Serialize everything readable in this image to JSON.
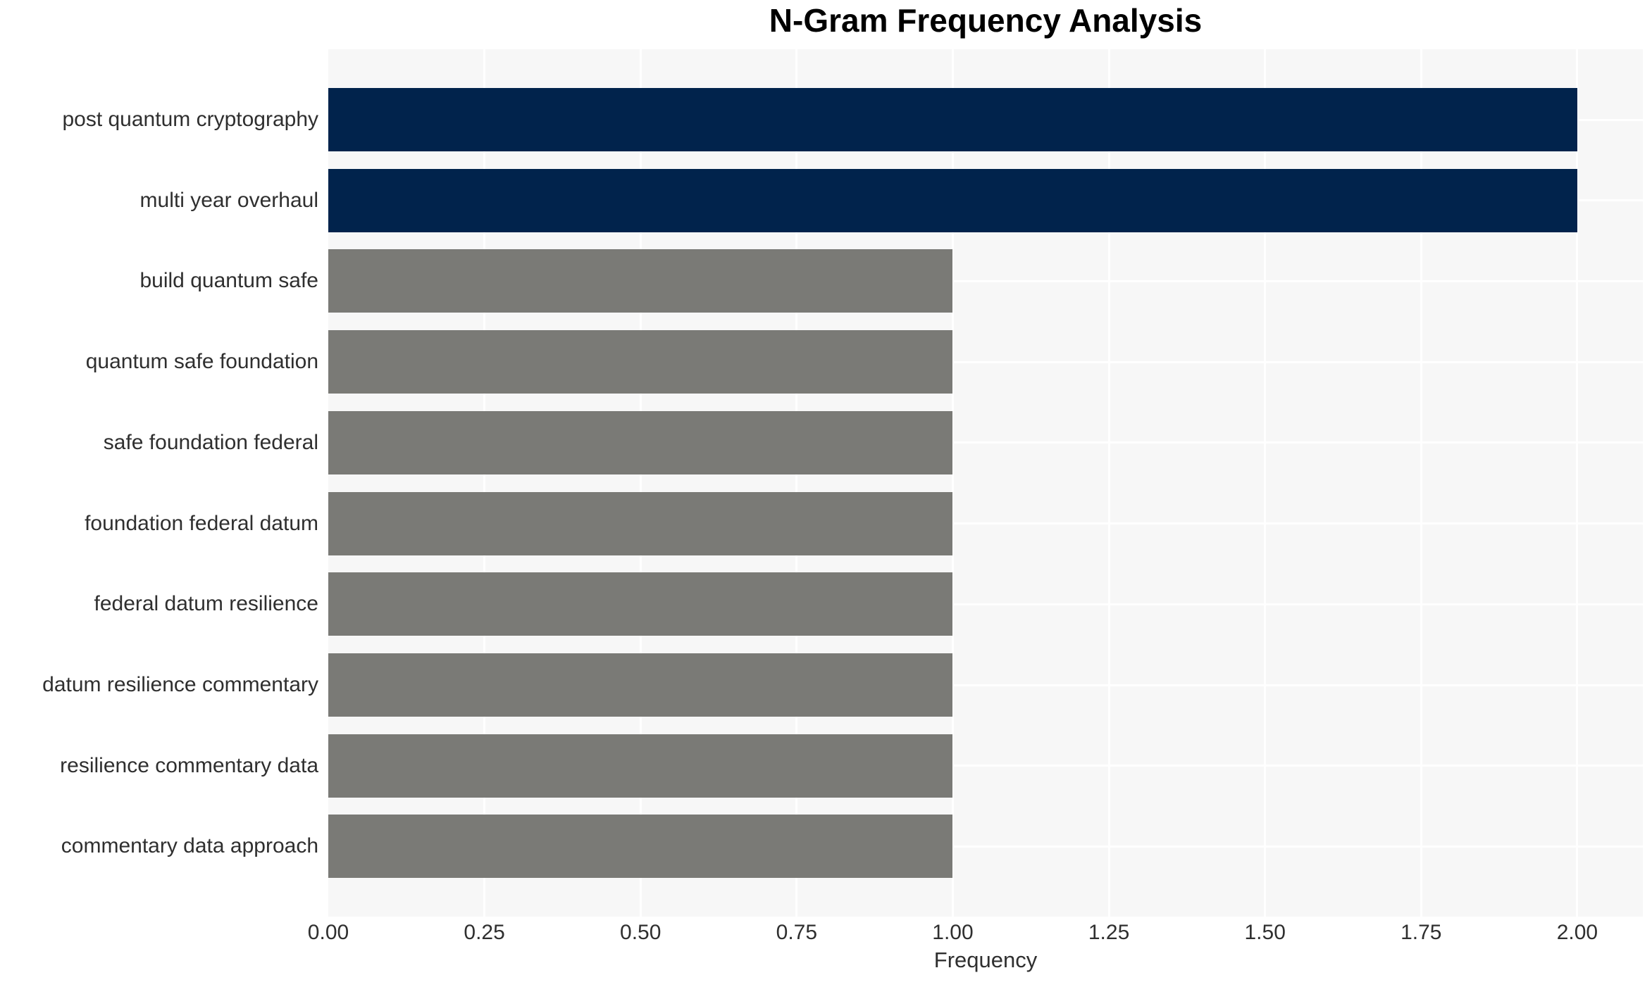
{
  "chart_data": {
    "type": "bar",
    "orientation": "horizontal",
    "title": "N-Gram Frequency Analysis",
    "xlabel": "Frequency",
    "ylabel": "",
    "categories": [
      "post quantum cryptography",
      "multi year overhaul",
      "build quantum safe",
      "quantum safe foundation",
      "safe foundation federal",
      "foundation federal datum",
      "federal datum resilience",
      "datum resilience commentary",
      "resilience commentary data",
      "commentary data approach"
    ],
    "values": [
      2,
      2,
      1,
      1,
      1,
      1,
      1,
      1,
      1,
      1
    ],
    "bar_colors": [
      "#01234c",
      "#01234c",
      "#7a7a76",
      "#7a7a76",
      "#7a7a76",
      "#7a7a76",
      "#7a7a76",
      "#7a7a76",
      "#7a7a76",
      "#7a7a76"
    ],
    "xlim": [
      0,
      2.105
    ],
    "xticks": [
      0.0,
      0.25,
      0.5,
      0.75,
      1.0,
      1.25,
      1.5,
      1.75,
      2.0
    ],
    "xtick_labels": [
      "0.00",
      "0.25",
      "0.50",
      "0.75",
      "1.00",
      "1.25",
      "1.50",
      "1.75",
      "2.00"
    ],
    "grid": true,
    "legend": false,
    "colors": {
      "plot_background": "#f7f7f7",
      "grid_line": "#ffffff",
      "highlight_bar": "#01234c",
      "default_bar": "#7a7a76",
      "axis_text": "#2f2f2f",
      "title_text": "#000000"
    }
  }
}
